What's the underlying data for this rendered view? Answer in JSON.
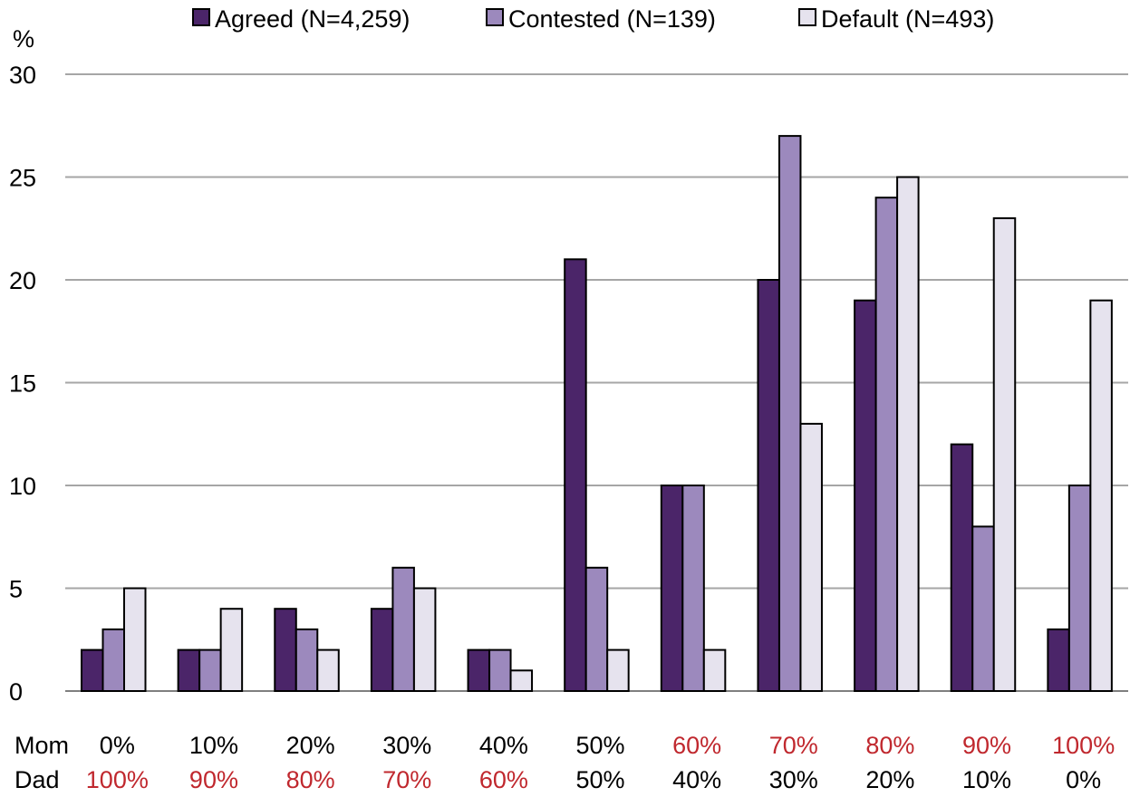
{
  "chart_data": {
    "type": "bar",
    "ylabel": "%",
    "ylim": [
      0,
      30
    ],
    "yticks": [
      0,
      5,
      10,
      15,
      20,
      25,
      30
    ],
    "grid": true,
    "legend_placement": "top",
    "row_labels": [
      "Mom",
      "Dad"
    ],
    "categories": [
      {
        "mom": "0%",
        "dad": "100%"
      },
      {
        "mom": "10%",
        "dad": "90%"
      },
      {
        "mom": "20%",
        "dad": "80%"
      },
      {
        "mom": "30%",
        "dad": "70%"
      },
      {
        "mom": "40%",
        "dad": "60%"
      },
      {
        "mom": "50%",
        "dad": "50%"
      },
      {
        "mom": "60%",
        "dad": "40%"
      },
      {
        "mom": "70%",
        "dad": "30%"
      },
      {
        "mom": "80%",
        "dad": "20%"
      },
      {
        "mom": "90%",
        "dad": "10%"
      },
      {
        "mom": "100%",
        "dad": "0%"
      }
    ],
    "series": [
      {
        "name": "Agreed (N=4,259)",
        "color": "#4b2569",
        "values": [
          2,
          2,
          4,
          4,
          2,
          21,
          10,
          20,
          19,
          12,
          3
        ]
      },
      {
        "name": "Contested (N=139)",
        "color": "#9c89bd",
        "values": [
          3,
          2,
          3,
          6,
          2,
          6,
          10,
          27,
          24,
          8,
          10
        ]
      },
      {
        "name": "Default (N=493)",
        "color": "#e6e3ee",
        "values": [
          5,
          4,
          2,
          5,
          1,
          2,
          2,
          13,
          25,
          23,
          19
        ]
      }
    ],
    "label_colors": {
      "majority": "#c0282e",
      "other": "#000000"
    }
  }
}
